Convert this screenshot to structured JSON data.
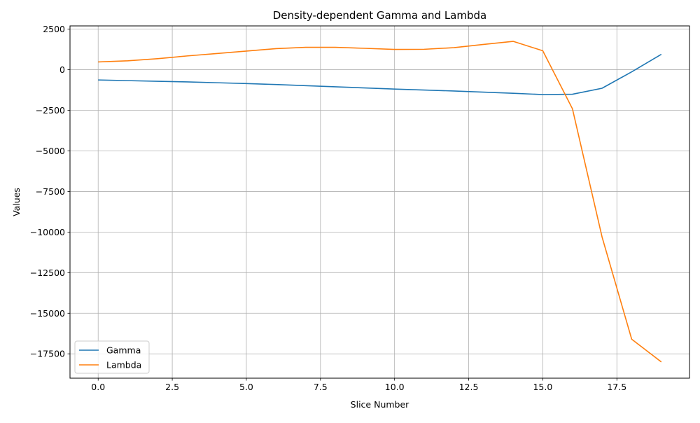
{
  "chart_data": {
    "type": "line",
    "title": "Density-dependent Gamma and Lambda",
    "xlabel": "Slice Number",
    "ylabel": "Values",
    "xlim": [
      -0.95,
      19.95
    ],
    "ylim": [
      -19000,
      2700
    ],
    "grid": true,
    "legend_position": "lower-left",
    "x": [
      0,
      1,
      2,
      3,
      4,
      5,
      6,
      7,
      8,
      9,
      10,
      11,
      12,
      13,
      14,
      15,
      16,
      17,
      18,
      19
    ],
    "xticks": [
      0.0,
      2.5,
      5.0,
      7.5,
      10.0,
      12.5,
      15.0,
      17.5
    ],
    "xtick_labels": [
      "0.0",
      "2.5",
      "5.0",
      "7.5",
      "10.0",
      "12.5",
      "15.0",
      "17.5"
    ],
    "yticks": [
      2500,
      0,
      -2500,
      -5000,
      -7500,
      -10000,
      -12500,
      -15000,
      -17500
    ],
    "ytick_labels": [
      "2500",
      "0",
      "−2500",
      "−5000",
      "−7500",
      "−10000",
      "−12500",
      "−15000",
      "−17500"
    ],
    "series": [
      {
        "name": "Gamma",
        "color": "#1f77b4",
        "values": [
          -630,
          -670,
          -710,
          -750,
          -800,
          -850,
          -910,
          -980,
          -1050,
          -1120,
          -1190,
          -1250,
          -1310,
          -1380,
          -1450,
          -1530,
          -1510,
          -1140,
          -130,
          950
        ]
      },
      {
        "name": "Lambda",
        "color": "#ff7f0e",
        "values": [
          480,
          550,
          680,
          850,
          1000,
          1150,
          1300,
          1380,
          1380,
          1320,
          1250,
          1260,
          1360,
          1560,
          1750,
          1170,
          -2400,
          -10300,
          -16600,
          -18000
        ]
      }
    ]
  }
}
